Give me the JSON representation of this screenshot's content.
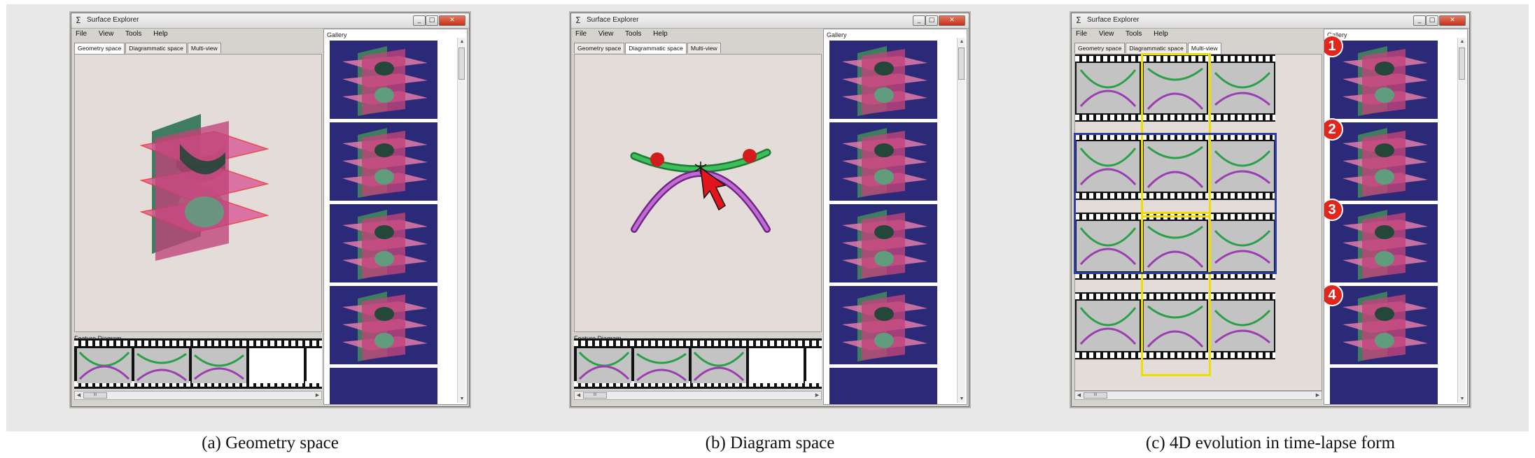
{
  "windows": [
    {
      "title": "Surface Explorer",
      "menu": [
        "File",
        "View",
        "Tools",
        "Help"
      ],
      "tabs": [
        "Geometry space",
        "Diagrammatic space",
        "Multi-view"
      ],
      "active_tab": "Geometry space",
      "feature_diagram_label": "Feature Diagram",
      "gallery_label": "Gallery",
      "caption": "(a) Geometry space"
    },
    {
      "title": "Surface Explorer",
      "menu": [
        "File",
        "View",
        "Tools",
        "Help"
      ],
      "tabs": [
        "Geometry space",
        "Diagrammatic space",
        "Multi-view"
      ],
      "active_tab": "Diagrammatic space",
      "feature_diagram_label": "Feature Diagram",
      "gallery_label": "Gallery",
      "caption": "(b) Diagram space"
    },
    {
      "title": "Surface Explorer",
      "menu": [
        "File",
        "View",
        "Tools",
        "Help"
      ],
      "tabs": [
        "Geometry space",
        "Diagrammatic space",
        "Multi-view"
      ],
      "active_tab": "Multi-view",
      "gallery_label": "Gallery",
      "badges": [
        "1",
        "2",
        "3",
        "4"
      ],
      "caption": "(c) 4D evolution in time-lapse form"
    }
  ],
  "scroll_thumb_label": "III",
  "colors": {
    "gallery_bg": "#2a2a78",
    "surface_pink": "#c0447a",
    "surface_green": "#4f8f6e",
    "curve_green": "#2aa04a",
    "curve_purple": "#9b3fb0",
    "highlight_yellow": "#f0dd00",
    "highlight_blue": "#2c3fa5",
    "badge_red": "#e0261d",
    "cursor_red": "#e2141c"
  }
}
